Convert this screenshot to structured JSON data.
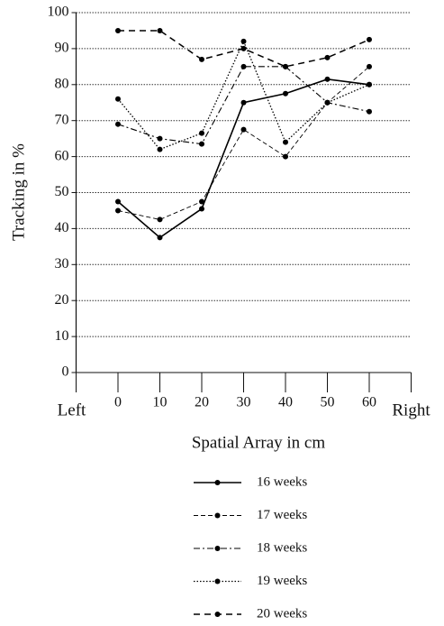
{
  "chart_data": {
    "type": "line",
    "x_label": "Spatial Array in cm",
    "y_label": "Tracking in %",
    "x": [
      0,
      10,
      20,
      30,
      40,
      50,
      60
    ],
    "xlim": [
      -10,
      70
    ],
    "xticks": [
      {
        "value": -10,
        "label": "Left"
      },
      0,
      10,
      20,
      30,
      40,
      50,
      60,
      {
        "value": 70,
        "label": "Right"
      }
    ],
    "ylim": [
      0,
      100
    ],
    "yticks": [
      0,
      10,
      20,
      30,
      40,
      50,
      60,
      70,
      80,
      90,
      100
    ],
    "grid": true,
    "series": [
      {
        "name": "16 weeks",
        "color": "#000000",
        "linestyle": "solid",
        "values": [
          47.5,
          37.5,
          45.5,
          75,
          77.5,
          81.5,
          80
        ]
      },
      {
        "name": "17 weeks",
        "color": "#000000",
        "linestyle": "dashed-thin",
        "values": [
          45,
          42.5,
          47.5,
          67.5,
          60,
          75,
          85
        ]
      },
      {
        "name": "18 weeks",
        "color": "#000000",
        "linestyle": "dashdot",
        "values": [
          69,
          65,
          63.5,
          85,
          85,
          75,
          72.5
        ]
      },
      {
        "name": "19 weeks",
        "color": "#000000",
        "linestyle": "dotted",
        "values": [
          76,
          62,
          66.5,
          92,
          64,
          75,
          80
        ]
      },
      {
        "name": "20 weeks",
        "color": "#000000",
        "linestyle": "dashed",
        "values": [
          95,
          95,
          87,
          90,
          85,
          87.5,
          92.5
        ]
      }
    ]
  }
}
